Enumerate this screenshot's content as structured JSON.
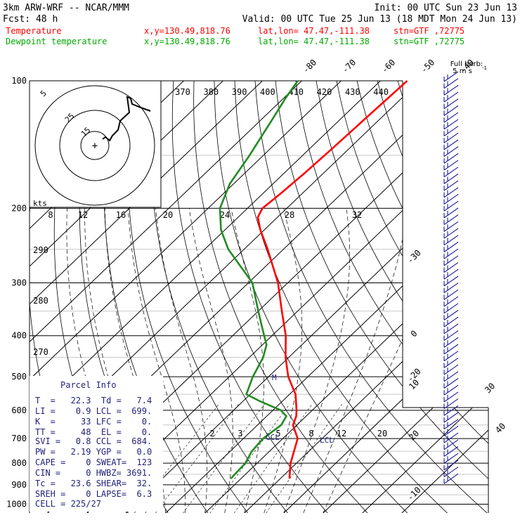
{
  "header": {
    "line1_left": "3km ARW-WRF -- NCAR/MMM",
    "line1_right": "Init: 00 UTC Sun 23 Jun 13",
    "line2_left": "Fcst:    48 h",
    "line2_right": "Valid: 00 UTC Tue 25 Jun 13 (18 MDT Mon 24 Jun 13)",
    "rows": [
      {
        "name": "Temperature",
        "color": "#ff0000",
        "xy": "x,y=130.49,818.76",
        "latlon": "lat,lon= 47.47,-111.38",
        "stn": "stn=GTF ,72775"
      },
      {
        "name": "Dewpoint temperature",
        "color": "#00aa00",
        "xy": "x,y=130.49,818.76",
        "latlon": "lat,lon= 47.47,-111.38",
        "stn": "stn=GTF ,72775"
      }
    ]
  },
  "barb_legend": {
    "title": "Full barb:",
    "value": "5 m s",
    "unit_sup": "-1"
  },
  "hodograph": {
    "unit": "kts",
    "ring_labels": [
      "5",
      "25",
      "15"
    ],
    "center_symbol": "+"
  },
  "colors": {
    "temperature": "#ff0000",
    "dewpoint": "#228b22",
    "parcel_info": "#22227a",
    "wind_barbs": "#1a1aa0",
    "hodo_trace": "#000000"
  },
  "chart_data": {
    "type": "line",
    "subtype": "skew-T log-P diagram",
    "y_axis": {
      "label": "pressure",
      "scale": "log",
      "ticks": [
        100,
        200,
        300,
        400,
        500,
        600,
        700,
        800,
        900,
        1000
      ]
    },
    "temperature_isotherm_labels": [
      -80,
      -70,
      -60,
      -50,
      -40,
      -30,
      -20,
      -10,
      0,
      10,
      20,
      30,
      40
    ],
    "theta_labels_top": [
      370,
      380,
      390,
      400,
      410,
      420,
      430,
      440
    ],
    "theta_labels_left": [
      290,
      280,
      270
    ],
    "mixing_ratio_labels_200": [
      8,
      12,
      16,
      20,
      24,
      28,
      32
    ],
    "mixing_ratio_labels_700": [
      2,
      3,
      5,
      8,
      12,
      20
    ],
    "series": [
      {
        "name": "Temperature",
        "color": "#ff0000",
        "points": [
          [
            870,
            22.3
          ],
          [
            800,
            18.5
          ],
          [
            700,
            13.8
          ],
          [
            650,
            9
          ],
          [
            620,
            7.5
          ],
          [
            600,
            6
          ],
          [
            550,
            1.5
          ],
          [
            500,
            -5
          ],
          [
            450,
            -10.8
          ],
          [
            400,
            -16.5
          ],
          [
            350,
            -24
          ],
          [
            300,
            -32.5
          ],
          [
            250,
            -44
          ],
          [
            225,
            -51
          ],
          [
            210,
            -55
          ],
          [
            200,
            -56.2
          ],
          [
            185,
            -55.5
          ],
          [
            165,
            -54.8
          ],
          [
            145,
            -54.3
          ],
          [
            125,
            -53.9
          ],
          [
            100,
            -53.2
          ]
        ]
      },
      {
        "name": "Dewpoint temperature",
        "color": "#228b22",
        "points": [
          [
            870,
            7.4
          ],
          [
            800,
            7
          ],
          [
            750,
            5.5
          ],
          [
            700,
            5
          ],
          [
            650,
            6
          ],
          [
            620,
            5
          ],
          [
            600,
            2
          ],
          [
            570,
            -6
          ],
          [
            550,
            -11
          ],
          [
            500,
            -14
          ],
          [
            450,
            -16.5
          ],
          [
            420,
            -19
          ],
          [
            400,
            -22
          ],
          [
            350,
            -30
          ],
          [
            300,
            -39
          ],
          [
            250,
            -54
          ],
          [
            225,
            -61
          ],
          [
            200,
            -67
          ],
          [
            175,
            -71
          ],
          [
            150,
            -73.5
          ],
          [
            125,
            -77
          ],
          [
            110,
            -79.5
          ],
          [
            100,
            -81
          ]
        ]
      }
    ],
    "markers": {
      "CCL": "CCL",
      "LCL": "LCL",
      "M": "M"
    }
  },
  "parcel_info": {
    "title": "Parcel Info",
    "rows": [
      "T  =   22.3  Td =   7.4",
      "LI =    0.9 LCL =  699.",
      "K  =     33 LFC =    0.",
      "TT =     48  EL =    0.",
      "SVI =   0.8 CCL =  684.",
      "PW =   2.19 YGP =   0.0",
      "CAPE =    0 SWEAT=  123",
      "CIN =     0 HWBZ= 3691.",
      "Tc =   23.6 SHEAR=  32.",
      "SREH =    0 LAPSE=  6.3",
      "CELL = 225/27"
    ]
  }
}
